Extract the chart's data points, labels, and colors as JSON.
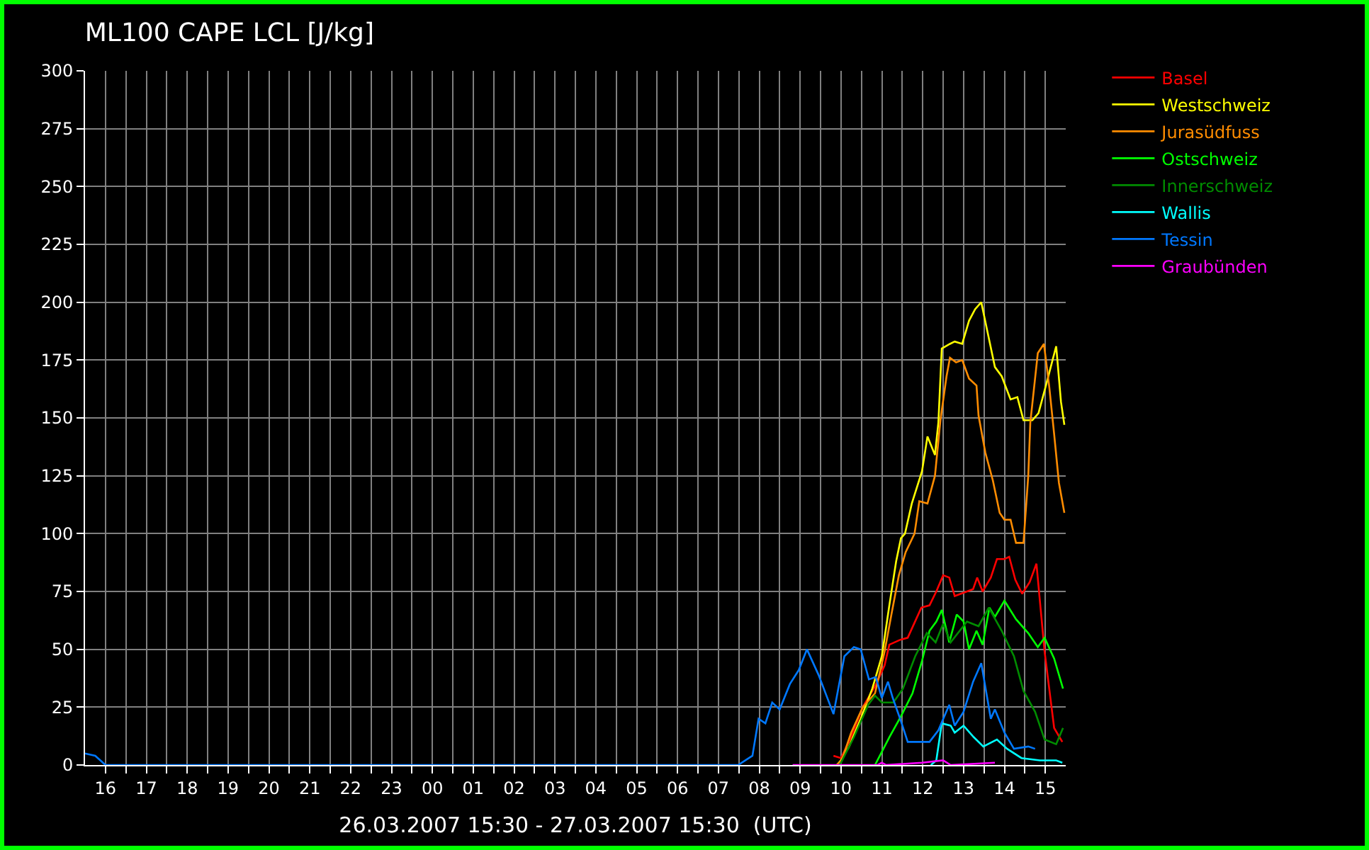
{
  "chart_data": {
    "type": "line",
    "title": "ML100 CAPE LCL [J/kg]",
    "xlabel": "26.03.2007 15:30 - 27.03.2007 15:30  (UTC)",
    "xlim": [
      "2007-03-26T15:30",
      "2007-03-27T15:30"
    ],
    "xticks": [
      {
        "value": "2007-03-26T16:00",
        "label": "16"
      },
      {
        "value": "2007-03-26T16:30",
        "label": null
      },
      {
        "value": "2007-03-26T17:00",
        "label": "17"
      },
      {
        "value": "2007-03-26T17:30",
        "label": null
      },
      {
        "value": "2007-03-26T18:00",
        "label": "18"
      },
      {
        "value": "2007-03-26T18:30",
        "label": null
      },
      {
        "value": "2007-03-26T19:00",
        "label": "19"
      },
      {
        "value": "2007-03-26T19:30",
        "label": null
      },
      {
        "value": "2007-03-26T20:00",
        "label": "20"
      },
      {
        "value": "2007-03-26T20:30",
        "label": null
      },
      {
        "value": "2007-03-26T21:00",
        "label": "21"
      },
      {
        "value": "2007-03-26T21:30",
        "label": null
      },
      {
        "value": "2007-03-26T22:00",
        "label": "22"
      },
      {
        "value": "2007-03-26T22:30",
        "label": null
      },
      {
        "value": "2007-03-26T23:00",
        "label": "23"
      },
      {
        "value": "2007-03-26T23:30",
        "label": null
      },
      {
        "value": "2007-03-27T00:00",
        "label": "00"
      },
      {
        "value": "2007-03-27T00:30",
        "label": null
      },
      {
        "value": "2007-03-27T01:00",
        "label": "01"
      },
      {
        "value": "2007-03-27T01:30",
        "label": null
      },
      {
        "value": "2007-03-27T02:00",
        "label": "02"
      },
      {
        "value": "2007-03-27T02:30",
        "label": null
      },
      {
        "value": "2007-03-27T03:00",
        "label": "03"
      },
      {
        "value": "2007-03-27T03:30",
        "label": null
      },
      {
        "value": "2007-03-27T04:00",
        "label": "04"
      },
      {
        "value": "2007-03-27T04:30",
        "label": null
      },
      {
        "value": "2007-03-27T05:00",
        "label": "05"
      },
      {
        "value": "2007-03-27T05:30",
        "label": null
      },
      {
        "value": "2007-03-27T06:00",
        "label": "06"
      },
      {
        "value": "2007-03-27T06:30",
        "label": null
      },
      {
        "value": "2007-03-27T07:00",
        "label": "07"
      },
      {
        "value": "2007-03-27T07:30",
        "label": null
      },
      {
        "value": "2007-03-27T08:00",
        "label": "08"
      },
      {
        "value": "2007-03-27T08:30",
        "label": null
      },
      {
        "value": "2007-03-27T09:00",
        "label": "09"
      },
      {
        "value": "2007-03-27T09:30",
        "label": null
      },
      {
        "value": "2007-03-27T10:00",
        "label": "10"
      },
      {
        "value": "2007-03-27T10:30",
        "label": null
      },
      {
        "value": "2007-03-27T11:00",
        "label": "11"
      },
      {
        "value": "2007-03-27T11:30",
        "label": null
      },
      {
        "value": "2007-03-27T12:00",
        "label": "12"
      },
      {
        "value": "2007-03-27T12:30",
        "label": null
      },
      {
        "value": "2007-03-27T13:00",
        "label": "13"
      },
      {
        "value": "2007-03-27T13:30",
        "label": null
      },
      {
        "value": "2007-03-27T14:00",
        "label": "14"
      },
      {
        "value": "2007-03-27T14:30",
        "label": null
      },
      {
        "value": "2007-03-27T15:00",
        "label": "15"
      }
    ],
    "ylim": [
      0,
      300
    ],
    "yticks": [
      0,
      25,
      50,
      75,
      100,
      125,
      150,
      175,
      200,
      225,
      250,
      275,
      300
    ],
    "grid": true,
    "legend": "top right",
    "series": [
      {
        "name": "Basel",
        "color": "#ff0000",
        "x": [
          "2007-03-27T09:49",
          "2007-03-27T10:00",
          "2007-03-27T10:15",
          "2007-03-27T10:32",
          "2007-03-27T10:50",
          "2007-03-27T11:04",
          "2007-03-27T11:11",
          "2007-03-27T11:26",
          "2007-03-27T11:38",
          "2007-03-27T11:58",
          "2007-03-27T12:10",
          "2007-03-27T12:20",
          "2007-03-27T12:30",
          "2007-03-27T12:39",
          "2007-03-27T12:47",
          "2007-03-27T13:05",
          "2007-03-27T13:14",
          "2007-03-27T13:20",
          "2007-03-27T13:28",
          "2007-03-27T13:40",
          "2007-03-27T13:49",
          "2007-03-27T14:00",
          "2007-03-27T14:07",
          "2007-03-27T14:16",
          "2007-03-27T14:26",
          "2007-03-27T14:37",
          "2007-03-27T14:47",
          "2007-03-27T14:59",
          "2007-03-27T15:13",
          "2007-03-27T15:25"
        ],
        "values": [
          4,
          3,
          12,
          25,
          34,
          43,
          52,
          54,
          55,
          68,
          69,
          75,
          82,
          81,
          73,
          75,
          76,
          81,
          75,
          81,
          89,
          89,
          90,
          80,
          74,
          79,
          87,
          49,
          16,
          10
        ]
      },
      {
        "name": "Westschweiz",
        "color": "#ffff00",
        "x": [
          "2007-03-27T09:54",
          "2007-03-27T10:00",
          "2007-03-27T10:12",
          "2007-03-27T10:29",
          "2007-03-27T10:46",
          "2007-03-27T11:00",
          "2007-03-27T11:11",
          "2007-03-27T11:21",
          "2007-03-27T11:28",
          "2007-03-27T11:34",
          "2007-03-27T11:44",
          "2007-03-27T11:59",
          "2007-03-27T12:07",
          "2007-03-27T12:18",
          "2007-03-27T12:23",
          "2007-03-27T12:28",
          "2007-03-27T12:40",
          "2007-03-27T12:47",
          "2007-03-27T12:58",
          "2007-03-27T13:08",
          "2007-03-27T13:17",
          "2007-03-27T13:26",
          "2007-03-27T13:36",
          "2007-03-27T13:46",
          "2007-03-27T13:56",
          "2007-03-27T14:09",
          "2007-03-27T14:19",
          "2007-03-27T14:28",
          "2007-03-27T14:41",
          "2007-03-27T14:50",
          "2007-03-27T15:00",
          "2007-03-27T15:08",
          "2007-03-27T15:16",
          "2007-03-27T15:23",
          "2007-03-27T15:28"
        ],
        "values": [
          0,
          2,
          8,
          20,
          33,
          47,
          69,
          88,
          98,
          100,
          113,
          127,
          142,
          134,
          148,
          180,
          182,
          183,
          182,
          192,
          197,
          200,
          186,
          172,
          168,
          158,
          159,
          149,
          149,
          152,
          163,
          172,
          181,
          157,
          147
        ]
      },
      {
        "name": "Jurasüdfuss",
        "color": "#ff8c00",
        "x": [
          "2007-03-27T09:54",
          "2007-03-27T10:01",
          "2007-03-27T10:15",
          "2007-03-27T10:32",
          "2007-03-27T10:50",
          "2007-03-27T11:04",
          "2007-03-27T11:14",
          "2007-03-27T11:25",
          "2007-03-27T11:35",
          "2007-03-27T11:48",
          "2007-03-27T11:55",
          "2007-03-27T12:07",
          "2007-03-27T12:18",
          "2007-03-27T12:26",
          "2007-03-27T12:35",
          "2007-03-27T12:40",
          "2007-03-27T12:49",
          "2007-03-27T12:58",
          "2007-03-27T13:08",
          "2007-03-27T13:19",
          "2007-03-27T13:22",
          "2007-03-27T13:32",
          "2007-03-27T13:43",
          "2007-03-27T13:53",
          "2007-03-27T14:00",
          "2007-03-27T14:09",
          "2007-03-27T14:17",
          "2007-03-27T14:28",
          "2007-03-27T14:35",
          "2007-03-27T14:38",
          "2007-03-27T14:49",
          "2007-03-27T14:58",
          "2007-03-27T15:06",
          "2007-03-27T15:13",
          "2007-03-27T15:20",
          "2007-03-27T15:28"
        ],
        "values": [
          0,
          2,
          14,
          25,
          31,
          49,
          65,
          82,
          92,
          100,
          114,
          113,
          125,
          149,
          168,
          176,
          174,
          175,
          167,
          164,
          151,
          135,
          123,
          109,
          106,
          106,
          96,
          96,
          125,
          148,
          178,
          182,
          163,
          143,
          122,
          109
        ]
      },
      {
        "name": "Ostschweiz",
        "color": "#00ff00",
        "x": [
          "2007-03-27T10:50",
          "2007-03-27T11:11",
          "2007-03-27T11:28",
          "2007-03-27T11:45",
          "2007-03-27T11:59",
          "2007-03-27T12:10",
          "2007-03-27T12:20",
          "2007-03-27T12:28",
          "2007-03-27T12:39",
          "2007-03-27T12:50",
          "2007-03-27T13:00",
          "2007-03-27T13:08",
          "2007-03-27T13:19",
          "2007-03-27T13:28",
          "2007-03-27T13:38",
          "2007-03-27T13:46",
          "2007-03-27T14:00",
          "2007-03-27T14:17",
          "2007-03-27T14:35",
          "2007-03-27T14:49",
          "2007-03-27T14:59",
          "2007-03-27T15:13",
          "2007-03-27T15:26"
        ],
        "values": [
          0,
          12,
          21,
          31,
          45,
          58,
          62,
          67,
          53,
          65,
          62,
          50,
          58,
          52,
          68,
          64,
          71,
          63,
          57,
          51,
          55,
          46,
          33
        ]
      },
      {
        "name": "Innerschweiz",
        "color": "#008c00",
        "x": [
          "2007-03-27T09:57",
          "2007-03-27T10:00",
          "2007-03-27T10:19",
          "2007-03-27T10:40",
          "2007-03-27T10:50",
          "2007-03-27T11:00",
          "2007-03-27T11:17",
          "2007-03-27T11:31",
          "2007-03-27T11:49",
          "2007-03-27T12:06",
          "2007-03-27T12:19",
          "2007-03-27T12:30",
          "2007-03-27T12:41",
          "2007-03-27T13:05",
          "2007-03-27T13:22",
          "2007-03-27T13:37",
          "2007-03-27T13:56",
          "2007-03-27T14:14",
          "2007-03-27T14:28",
          "2007-03-27T14:45",
          "2007-03-27T14:59",
          "2007-03-27T15:16",
          "2007-03-27T15:26"
        ],
        "values": [
          0,
          1,
          12,
          26,
          30,
          27,
          27,
          33,
          47,
          57,
          53,
          61,
          53,
          62,
          60,
          68,
          58,
          47,
          32,
          23,
          11,
          9,
          16
        ]
      },
      {
        "name": "Wallis",
        "color": "#00ffff",
        "x": [
          "2007-03-27T12:12",
          "2007-03-27T12:20",
          "2007-03-27T12:28",
          "2007-03-27T12:41",
          "2007-03-27T12:47",
          "2007-03-27T13:00",
          "2007-03-27T13:15",
          "2007-03-27T13:29",
          "2007-03-27T13:49",
          "2007-03-27T14:04",
          "2007-03-27T14:25",
          "2007-03-27T14:52",
          "2007-03-27T15:16",
          "2007-03-27T15:25"
        ],
        "values": [
          0,
          2,
          18,
          17,
          14,
          17,
          12,
          8,
          11,
          7,
          3,
          2,
          2,
          1
        ]
      },
      {
        "name": "Tessin",
        "color": "#0078ff",
        "x": [
          "2007-03-26T15:30",
          "2007-03-26T15:45",
          "2007-03-26T16:00",
          "2007-03-27T07:29",
          "2007-03-27T07:50",
          "2007-03-27T07:59",
          "2007-03-27T08:09",
          "2007-03-27T08:19",
          "2007-03-27T08:30",
          "2007-03-27T08:45",
          "2007-03-27T08:58",
          "2007-03-27T09:10",
          "2007-03-27T09:27",
          "2007-03-27T09:49",
          "2007-03-27T10:05",
          "2007-03-27T10:19",
          "2007-03-27T10:29",
          "2007-03-27T10:41",
          "2007-03-27T10:51",
          "2007-03-27T11:00",
          "2007-03-27T11:09",
          "2007-03-27T11:16",
          "2007-03-27T11:28",
          "2007-03-27T11:38",
          "2007-03-27T11:52",
          "2007-03-27T12:10",
          "2007-03-27T12:23",
          "2007-03-27T12:39",
          "2007-03-27T12:47",
          "2007-03-27T13:00",
          "2007-03-27T13:14",
          "2007-03-27T13:26",
          "2007-03-27T13:40",
          "2007-03-27T13:46",
          "2007-03-27T14:00",
          "2007-03-27T14:14",
          "2007-03-27T14:35",
          "2007-03-27T14:45"
        ],
        "values": [
          5,
          4,
          0,
          0,
          4,
          20,
          18,
          27,
          24,
          35,
          41,
          50,
          39,
          22,
          47,
          51,
          50,
          37,
          38,
          29,
          36,
          29,
          19,
          10,
          10,
          10,
          15,
          26,
          17,
          23,
          36,
          44,
          20,
          24,
          14,
          7,
          8,
          7
        ]
      },
      {
        "name": "Graubünden",
        "color": "#ff00ff",
        "x": [
          "2007-03-27T08:49",
          "2007-03-27T10:54",
          "2007-03-27T11:00",
          "2007-03-27T11:06",
          "2007-03-27T11:59",
          "2007-03-27T12:30",
          "2007-03-27T12:41",
          "2007-03-27T13:46"
        ],
        "values": [
          0,
          0,
          1,
          0,
          1,
          2,
          0,
          1
        ]
      }
    ]
  }
}
